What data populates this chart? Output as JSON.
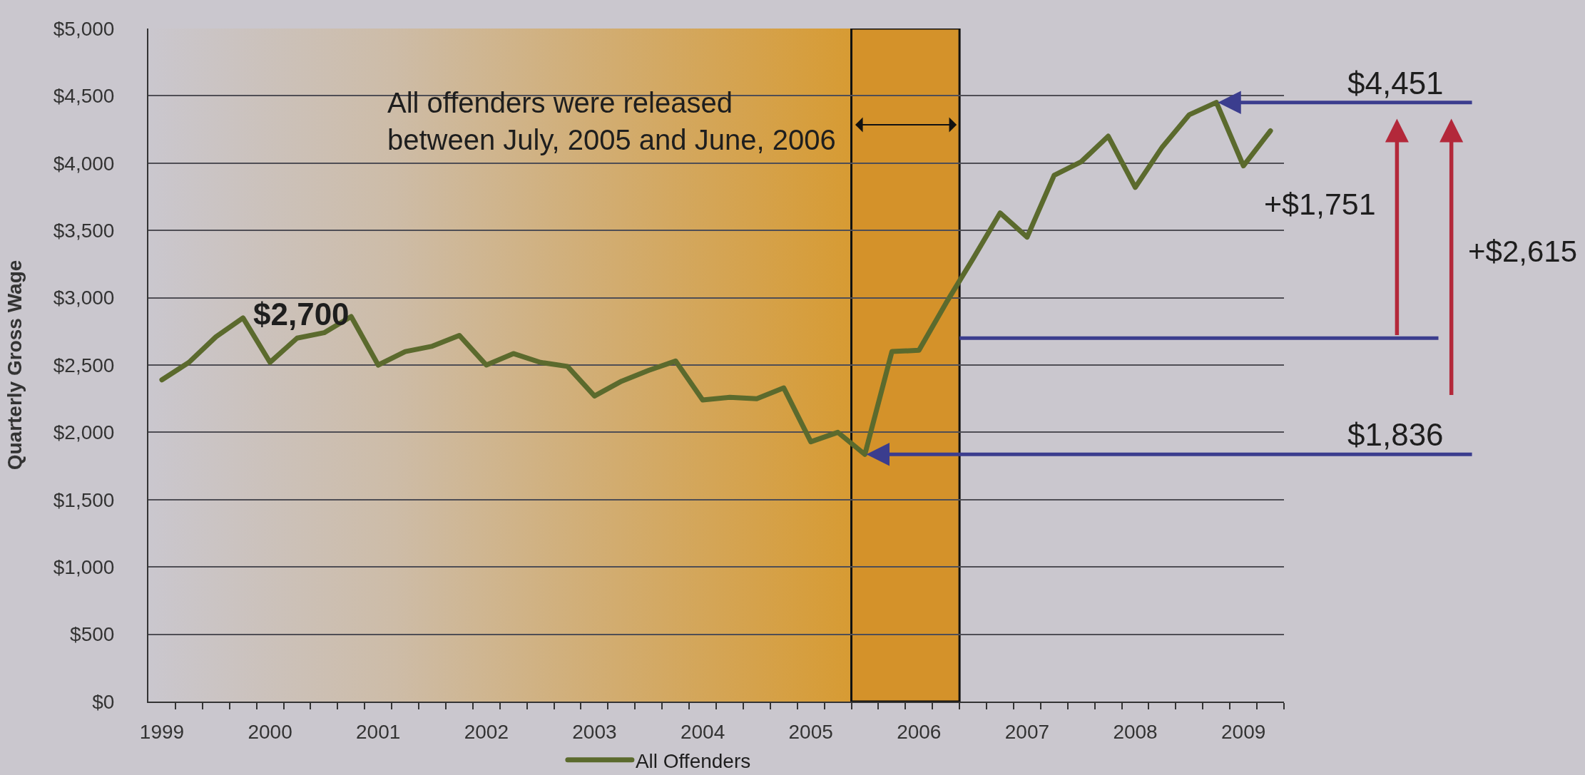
{
  "chart_data": {
    "type": "line",
    "x": [
      1999,
      1999.25,
      1999.5,
      1999.75,
      2000,
      2000.25,
      2000.5,
      2000.75,
      2001,
      2001.25,
      2001.5,
      2001.75,
      2002,
      2002.25,
      2002.5,
      2002.75,
      2003,
      2003.25,
      2003.5,
      2003.75,
      2004,
      2004.25,
      2004.5,
      2004.75,
      2005,
      2005.25,
      2005.5,
      2005.75,
      2006,
      2006.25,
      2006.5,
      2006.75,
      2007,
      2007.25,
      2007.5,
      2007.75,
      2008,
      2008.25,
      2008.5,
      2008.75,
      2009,
      2009.25
    ],
    "series": [
      {
        "name": "All Offenders",
        "color": "#5b6a2d",
        "values": [
          2390,
          2520,
          2710,
          2850,
          2520,
          2700,
          2740,
          2860,
          2500,
          2600,
          2640,
          2720,
          2500,
          2585,
          2520,
          2490,
          2270,
          2380,
          2460,
          2530,
          2240,
          2260,
          2250,
          2330,
          1930,
          2000,
          1836,
          2600,
          2610,
          2960,
          3290,
          3630,
          3450,
          3910,
          4010,
          4200,
          3820,
          4120,
          4360,
          4451,
          3980,
          4240
        ]
      }
    ],
    "xlim": [
      1998.875,
      2009.375
    ],
    "xticks": [
      1999,
      2000,
      2001,
      2002,
      2003,
      2004,
      2005,
      2006,
      2007,
      2008,
      2009,
      {
        "value": 1999.125,
        "label": null
      },
      {
        "value": 1999.375,
        "label": null
      },
      {
        "value": 1999.625,
        "label": null
      },
      {
        "value": 1999.875,
        "label": null
      },
      {
        "value": 2000.125,
        "label": null
      },
      {
        "value": 2000.375,
        "label": null
      },
      {
        "value": 2000.625,
        "label": null
      },
      {
        "value": 2000.875,
        "label": null
      },
      {
        "value": 2001.125,
        "label": null
      },
      {
        "value": 2001.375,
        "label": null
      },
      {
        "value": 2001.625,
        "label": null
      },
      {
        "value": 2001.875,
        "label": null
      },
      {
        "value": 2002.125,
        "label": null
      },
      {
        "value": 2002.375,
        "label": null
      },
      {
        "value": 2002.625,
        "label": null
      },
      {
        "value": 2002.875,
        "label": null
      },
      {
        "value": 2003.125,
        "label": null
      },
      {
        "value": 2003.375,
        "label": null
      },
      {
        "value": 2003.625,
        "label": null
      },
      {
        "value": 2003.875,
        "label": null
      },
      {
        "value": 2004.125,
        "label": null
      },
      {
        "value": 2004.375,
        "label": null
      },
      {
        "value": 2004.625,
        "label": null
      },
      {
        "value": 2004.875,
        "label": null
      },
      {
        "value": 2005.125,
        "label": null
      },
      {
        "value": 2005.375,
        "label": null
      },
      {
        "value": 2005.625,
        "label": null
      },
      {
        "value": 2005.875,
        "label": null
      },
      {
        "value": 2006.125,
        "label": null
      },
      {
        "value": 2006.375,
        "label": null
      },
      {
        "value": 2006.625,
        "label": null
      },
      {
        "value": 2006.875,
        "label": null
      },
      {
        "value": 2007.125,
        "label": null
      },
      {
        "value": 2007.375,
        "label": null
      },
      {
        "value": 2007.625,
        "label": null
      },
      {
        "value": 2007.875,
        "label": null
      },
      {
        "value": 2008.125,
        "label": null
      },
      {
        "value": 2008.375,
        "label": null
      },
      {
        "value": 2008.625,
        "label": null
      },
      {
        "value": 2008.875,
        "label": null
      },
      {
        "value": 2009.125,
        "label": null
      },
      {
        "value": 2009.375,
        "label": null
      }
    ],
    "ylim": [
      0,
      5000
    ],
    "yticks": [
      {
        "value": 0,
        "label": "$0"
      },
      {
        "value": 500,
        "label": "$500"
      },
      {
        "value": 1000,
        "label": "$1,000"
      },
      {
        "value": 1500,
        "label": "$1,500"
      },
      {
        "value": 2000,
        "label": "$2,000"
      },
      {
        "value": 2500,
        "label": "$2,500"
      },
      {
        "value": 3000,
        "label": "$3,000"
      },
      {
        "value": 3500,
        "label": "$3,500"
      },
      {
        "value": 4000,
        "label": "$4,000"
      },
      {
        "value": 4500,
        "label": "$4,500"
      },
      {
        "value": 5000,
        "label": "$5,000"
      }
    ],
    "ylabel": "Quarterly Gross Wage",
    "line_style": "solid",
    "grid": "y",
    "legend": "bottom",
    "bands": [
      {
        "axis": "x",
        "from": 1998.875,
        "to": 2005.375,
        "color": "#d79b33"
      },
      {
        "axis": "x",
        "from": 2005.375,
        "to": 2006.375,
        "label": "All offenders were released between July, 2005 and June, 2006",
        "color": "#d4922a"
      }
    ],
    "ref_lines": [
      {
        "axis": "y",
        "value": 2700,
        "color": "#3b3d8e"
      }
    ],
    "annotations": [
      "$2,700",
      {
        "text": "$4,451",
        "x": 2008.75,
        "y": 4451
      },
      {
        "text": "$1,836",
        "x": 2005.5,
        "y": 1836
      },
      "+$1,751",
      "+$2,615"
    ]
  }
}
